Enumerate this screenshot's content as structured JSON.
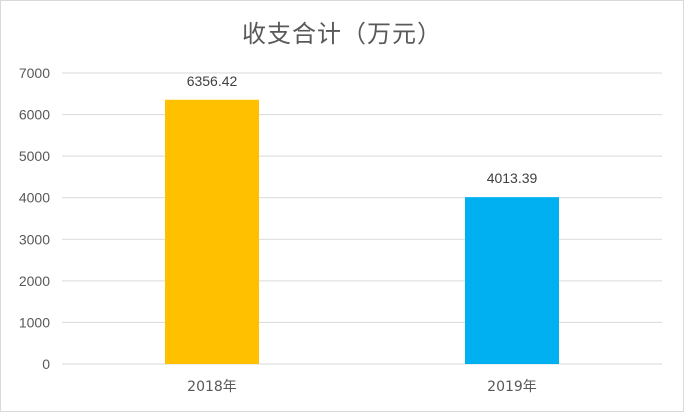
{
  "chart_data": {
    "type": "bar",
    "title": "收支合计（万元）",
    "categories": [
      "2018年",
      "2019年"
    ],
    "values": [
      6356.42,
      4013.39
    ],
    "data_labels": [
      "6356.42",
      "4013.39"
    ],
    "colors": [
      "#ffc000",
      "#00b0f0"
    ],
    "ylim": [
      0,
      7000
    ],
    "yticks": [
      "0",
      "1000",
      "2000",
      "3000",
      "4000",
      "5000",
      "6000",
      "7000"
    ],
    "grid": true,
    "legend": "none"
  }
}
